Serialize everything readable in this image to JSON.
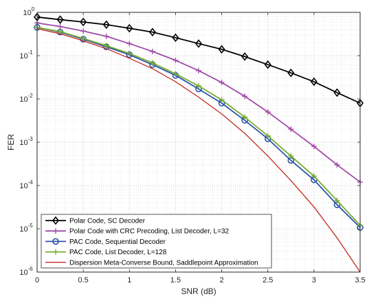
{
  "chart_data": {
    "type": "line",
    "xlabel": "SNR (dB)",
    "ylabel": "FER",
    "xlim": [
      0,
      3.5
    ],
    "ylim": [
      1e-06,
      1
    ],
    "yscale": "log",
    "grid": "on (major and minor, dotted)",
    "legend_position": "bottom-left",
    "x_ticks": [
      "0",
      "0.5",
      "1",
      "1.5",
      "2",
      "2.5",
      "3",
      "3.5"
    ],
    "y_ticks": [
      {
        "base": "10",
        "exp": "0"
      },
      {
        "base": "10",
        "exp": "-1"
      },
      {
        "base": "10",
        "exp": "-2"
      },
      {
        "base": "10",
        "exp": "-3"
      },
      {
        "base": "10",
        "exp": "-4"
      },
      {
        "base": "10",
        "exp": "-5"
      },
      {
        "base": "10",
        "exp": "-6"
      }
    ],
    "x": [
      0,
      0.25,
      0.5,
      0.75,
      1,
      1.25,
      1.5,
      1.75,
      2,
      2.25,
      2.5,
      2.75,
      3,
      3.25,
      3.5
    ],
    "series": [
      {
        "name": "Polar Code, SC Decoder",
        "color": "#000000",
        "marker": "diamond",
        "values": [
          0.78,
          0.68,
          0.6,
          0.52,
          0.43,
          0.35,
          0.26,
          0.19,
          0.14,
          0.095,
          0.062,
          0.04,
          0.025,
          0.014,
          0.008
        ]
      },
      {
        "name": "Polar Code with CRC Precoding, List Decoder, L=32",
        "color": "#a04ba8",
        "marker": "plus",
        "values": [
          0.57,
          0.47,
          0.37,
          0.28,
          0.19,
          0.125,
          0.078,
          0.045,
          0.024,
          0.0115,
          0.005,
          0.002,
          0.0008,
          0.0003,
          0.00012
        ]
      },
      {
        "name": "PAC Code, Sequential Decoder",
        "color": "#2b54a8",
        "marker": "circle",
        "values": [
          0.45,
          0.35,
          0.24,
          0.16,
          0.105,
          0.062,
          0.035,
          0.017,
          0.008,
          0.0032,
          0.0012,
          0.00038,
          0.000135,
          3.6e-05,
          1.07e-05
        ]
      },
      {
        "name": "PAC Code, List Decoder, L=128",
        "color": "#77ac30",
        "marker": "plus",
        "values": [
          0.45,
          0.36,
          0.25,
          0.17,
          0.113,
          0.068,
          0.038,
          0.02,
          0.0095,
          0.0038,
          0.0014,
          0.00048,
          0.000165,
          4.5e-05,
          1.2e-05
        ]
      },
      {
        "name": "Dispersion Meta-Converse Bound, Saddlepoint Approximation",
        "color": "#c0281e",
        "marker": "none",
        "values": [
          0.42,
          0.32,
          0.22,
          0.145,
          0.087,
          0.05,
          0.025,
          0.011,
          0.0045,
          0.0016,
          0.00048,
          0.00013,
          3.2e-05,
          6.2e-06,
          1e-06
        ]
      }
    ]
  }
}
